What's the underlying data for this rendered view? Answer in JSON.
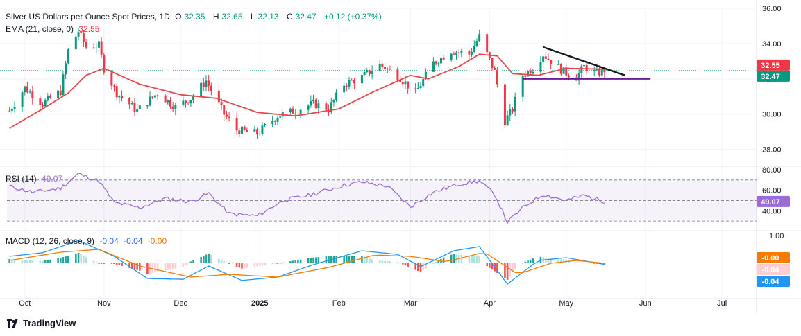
{
  "header": {
    "symbol": "Silver US Dollars per Ounce Spot Prices, 1D",
    "open_label": "O",
    "open": "32.35",
    "high_label": "H",
    "high": "32.65",
    "low_label": "L",
    "low": "32.13",
    "close_label": "C",
    "close": "32.47",
    "change": "+0.12 (+0.37%)"
  },
  "ema_legend": {
    "label": "EMA (21, close, 0)",
    "value": "32.55"
  },
  "rsi_legend": {
    "label": "RSI (14)",
    "value": "49.07"
  },
  "macd_legend": {
    "label": "MACD (12, 26, close, 9)",
    "v1": "-0.04",
    "v2": "-0.04",
    "v3": "-0.00"
  },
  "brand": "TradingView",
  "colors": {
    "up": "#089981",
    "down": "#f23645",
    "ema": "#e5484d",
    "rsi": "#9c6bd6",
    "macd": "#2196f3",
    "signal": "#f57c00",
    "trend": "#131722",
    "support": "#6a1b9a"
  },
  "chart_data": [
    {
      "type": "candlestick",
      "title": "Silver US Dollars per Ounce Spot Prices, 1D",
      "y_ticks": [
        "36.00",
        "34.00",
        "32.00",
        "30.00",
        "28.00"
      ],
      "ylim": [
        27.2,
        36.0
      ],
      "x_ticks": [
        "Oct",
        "Nov",
        "Dec",
        "2025",
        "Feb",
        "Mar",
        "Apr",
        "May",
        "Jun",
        "Jul"
      ],
      "price_badges": {
        "ema": "32.55",
        "close": "32.47"
      },
      "ohlc_anchors": [
        {
          "date": "2024-09-25",
          "close": 30.2
        },
        {
          "date": "2024-10-01",
          "close": 31.5
        },
        {
          "date": "2024-10-08",
          "close": 30.6
        },
        {
          "date": "2024-10-15",
          "close": 31.3
        },
        {
          "date": "2024-10-18",
          "close": 33.6
        },
        {
          "date": "2024-10-22",
          "close": 34.7
        },
        {
          "date": "2024-10-25",
          "close": 33.8
        },
        {
          "date": "2024-10-30",
          "close": 33.9
        },
        {
          "date": "2024-11-01",
          "close": 32.6
        },
        {
          "date": "2024-11-06",
          "close": 31.2
        },
        {
          "date": "2024-11-14",
          "close": 30.2
        },
        {
          "date": "2024-11-22",
          "close": 31.2
        },
        {
          "date": "2024-11-29",
          "close": 30.4
        },
        {
          "date": "2024-12-05",
          "close": 30.9
        },
        {
          "date": "2024-12-11",
          "close": 31.9
        },
        {
          "date": "2024-12-18",
          "close": 30.0
        },
        {
          "date": "2024-12-23",
          "close": 29.1
        },
        {
          "date": "2024-12-31",
          "close": 28.9
        },
        {
          "date": "2025-01-08",
          "close": 29.9
        },
        {
          "date": "2025-01-15",
          "close": 30.2
        },
        {
          "date": "2025-01-22",
          "close": 30.6
        },
        {
          "date": "2025-01-28",
          "close": 30.3
        },
        {
          "date": "2025-02-03",
          "close": 31.7
        },
        {
          "date": "2025-02-10",
          "close": 32.1
        },
        {
          "date": "2025-02-17",
          "close": 32.8
        },
        {
          "date": "2025-02-24",
          "close": 32.2
        },
        {
          "date": "2025-03-03",
          "close": 31.2
        },
        {
          "date": "2025-03-10",
          "close": 32.9
        },
        {
          "date": "2025-03-17",
          "close": 33.6
        },
        {
          "date": "2025-03-24",
          "close": 33.4
        },
        {
          "date": "2025-03-28",
          "close": 34.4
        },
        {
          "date": "2025-04-03",
          "close": 32.4
        },
        {
          "date": "2025-04-07",
          "close": 29.6
        },
        {
          "date": "2025-04-10",
          "close": 30.3
        },
        {
          "date": "2025-04-14",
          "close": 32.2
        },
        {
          "date": "2025-04-18",
          "close": 32.6
        },
        {
          "date": "2025-04-22",
          "close": 33.4
        },
        {
          "date": "2025-04-25",
          "close": 33.0
        },
        {
          "date": "2025-04-30",
          "close": 32.4
        },
        {
          "date": "2025-05-05",
          "close": 32.1
        },
        {
          "date": "2025-05-08",
          "close": 32.7
        },
        {
          "date": "2025-05-13",
          "close": 32.3
        },
        {
          "date": "2025-05-16",
          "close": 32.5
        }
      ],
      "ema_21_anchors": [
        {
          "date": "2024-09-25",
          "value": 29.2
        },
        {
          "date": "2024-10-08",
          "value": 30.3
        },
        {
          "date": "2024-10-18",
          "value": 31.2
        },
        {
          "date": "2024-10-25",
          "value": 32.2
        },
        {
          "date": "2024-11-01",
          "value": 32.6
        },
        {
          "date": "2024-11-15",
          "value": 31.7
        },
        {
          "date": "2024-12-01",
          "value": 31.1
        },
        {
          "date": "2024-12-15",
          "value": 30.9
        },
        {
          "date": "2024-12-31",
          "value": 30.1
        },
        {
          "date": "2025-01-15",
          "value": 29.9
        },
        {
          "date": "2025-02-01",
          "value": 30.3
        },
        {
          "date": "2025-02-15",
          "value": 31.3
        },
        {
          "date": "2025-03-01",
          "value": 32.2
        },
        {
          "date": "2025-03-08",
          "value": 32.0
        },
        {
          "date": "2025-03-20",
          "value": 32.7
        },
        {
          "date": "2025-03-28",
          "value": 33.4
        },
        {
          "date": "2025-04-04",
          "value": 33.3
        },
        {
          "date": "2025-04-10",
          "value": 32.3
        },
        {
          "date": "2025-04-20",
          "value": 32.2
        },
        {
          "date": "2025-05-01",
          "value": 32.6
        },
        {
          "date": "2025-05-16",
          "value": 32.55
        }
      ],
      "trendlines": [
        {
          "name": "descending-resistance",
          "from": {
            "date": "2025-04-22",
            "value": 33.8
          },
          "to": {
            "date": "2025-05-24",
            "value": 32.2
          }
        },
        {
          "name": "horizontal-support",
          "from": {
            "date": "2025-04-14",
            "value": 32.0
          },
          "to": {
            "date": "2025-06-03",
            "value": 32.0
          }
        }
      ],
      "reference_line": {
        "value": 32.47
      }
    },
    {
      "type": "line",
      "title": "RSI (14)",
      "y_ticks": [
        "80.00",
        "60.00",
        "40.00"
      ],
      "ylim": [
        24,
        82
      ],
      "bands": [
        70,
        50,
        30
      ],
      "last_value": "49.07",
      "anchors": [
        {
          "date": "2024-09-25",
          "value": 64
        },
        {
          "date": "2024-10-04",
          "value": 58
        },
        {
          "date": "2024-10-15",
          "value": 62
        },
        {
          "date": "2024-10-22",
          "value": 76
        },
        {
          "date": "2024-10-30",
          "value": 69
        },
        {
          "date": "2024-11-05",
          "value": 48
        },
        {
          "date": "2024-11-15",
          "value": 43
        },
        {
          "date": "2024-11-25",
          "value": 52
        },
        {
          "date": "2024-12-05",
          "value": 49
        },
        {
          "date": "2024-12-12",
          "value": 57
        },
        {
          "date": "2024-12-20",
          "value": 37
        },
        {
          "date": "2024-12-31",
          "value": 35
        },
        {
          "date": "2025-01-10",
          "value": 50
        },
        {
          "date": "2025-01-20",
          "value": 55
        },
        {
          "date": "2025-02-03",
          "value": 65
        },
        {
          "date": "2025-02-10",
          "value": 68
        },
        {
          "date": "2025-02-20",
          "value": 64
        },
        {
          "date": "2025-03-01",
          "value": 44
        },
        {
          "date": "2025-03-10",
          "value": 58
        },
        {
          "date": "2025-03-20",
          "value": 66
        },
        {
          "date": "2025-03-28",
          "value": 69
        },
        {
          "date": "2025-04-03",
          "value": 56
        },
        {
          "date": "2025-04-08",
          "value": 29
        },
        {
          "date": "2025-04-15",
          "value": 45
        },
        {
          "date": "2025-04-22",
          "value": 56
        },
        {
          "date": "2025-05-01",
          "value": 50
        },
        {
          "date": "2025-05-08",
          "value": 55
        },
        {
          "date": "2025-05-16",
          "value": 49
        }
      ]
    },
    {
      "type": "macd",
      "title": "MACD (12, 26, close, 9)",
      "y_ticks": [
        "1.00"
      ],
      "ylim": [
        -1.2,
        1.0
      ],
      "last_values": {
        "macd": "-0.04",
        "signal": "-0.00",
        "histogram": "-0.04"
      },
      "macd_anchors": [
        {
          "date": "2024-09-25",
          "value": 0.25
        },
        {
          "date": "2024-10-08",
          "value": 0.38
        },
        {
          "date": "2024-10-22",
          "value": 0.82
        },
        {
          "date": "2024-11-05",
          "value": 0.25
        },
        {
          "date": "2024-11-18",
          "value": -0.55
        },
        {
          "date": "2024-12-02",
          "value": -0.58
        },
        {
          "date": "2024-12-12",
          "value": -0.1
        },
        {
          "date": "2024-12-25",
          "value": -0.62
        },
        {
          "date": "2025-01-08",
          "value": -0.5
        },
        {
          "date": "2025-01-22",
          "value": -0.05
        },
        {
          "date": "2025-02-10",
          "value": 0.45
        },
        {
          "date": "2025-02-24",
          "value": 0.32
        },
        {
          "date": "2025-03-05",
          "value": -0.12
        },
        {
          "date": "2025-03-18",
          "value": 0.45
        },
        {
          "date": "2025-03-28",
          "value": 0.6
        },
        {
          "date": "2025-04-08",
          "value": -0.75
        },
        {
          "date": "2025-04-20",
          "value": 0.1
        },
        {
          "date": "2025-05-01",
          "value": 0.2
        },
        {
          "date": "2025-05-16",
          "value": -0.04
        }
      ],
      "signal_anchors": [
        {
          "date": "2024-09-25",
          "value": 0.1
        },
        {
          "date": "2024-10-15",
          "value": 0.4
        },
        {
          "date": "2024-10-30",
          "value": 0.5
        },
        {
          "date": "2024-11-15",
          "value": -0.1
        },
        {
          "date": "2024-12-05",
          "value": -0.5
        },
        {
          "date": "2024-12-20",
          "value": -0.4
        },
        {
          "date": "2025-01-08",
          "value": -0.5
        },
        {
          "date": "2025-01-28",
          "value": -0.15
        },
        {
          "date": "2025-02-15",
          "value": 0.3
        },
        {
          "date": "2025-03-01",
          "value": 0.25
        },
        {
          "date": "2025-03-15",
          "value": 0.05
        },
        {
          "date": "2025-03-30",
          "value": 0.4
        },
        {
          "date": "2025-04-12",
          "value": -0.4
        },
        {
          "date": "2025-04-25",
          "value": 0.0
        },
        {
          "date": "2025-05-05",
          "value": 0.1
        },
        {
          "date": "2025-05-16",
          "value": -0.0
        }
      ]
    }
  ]
}
